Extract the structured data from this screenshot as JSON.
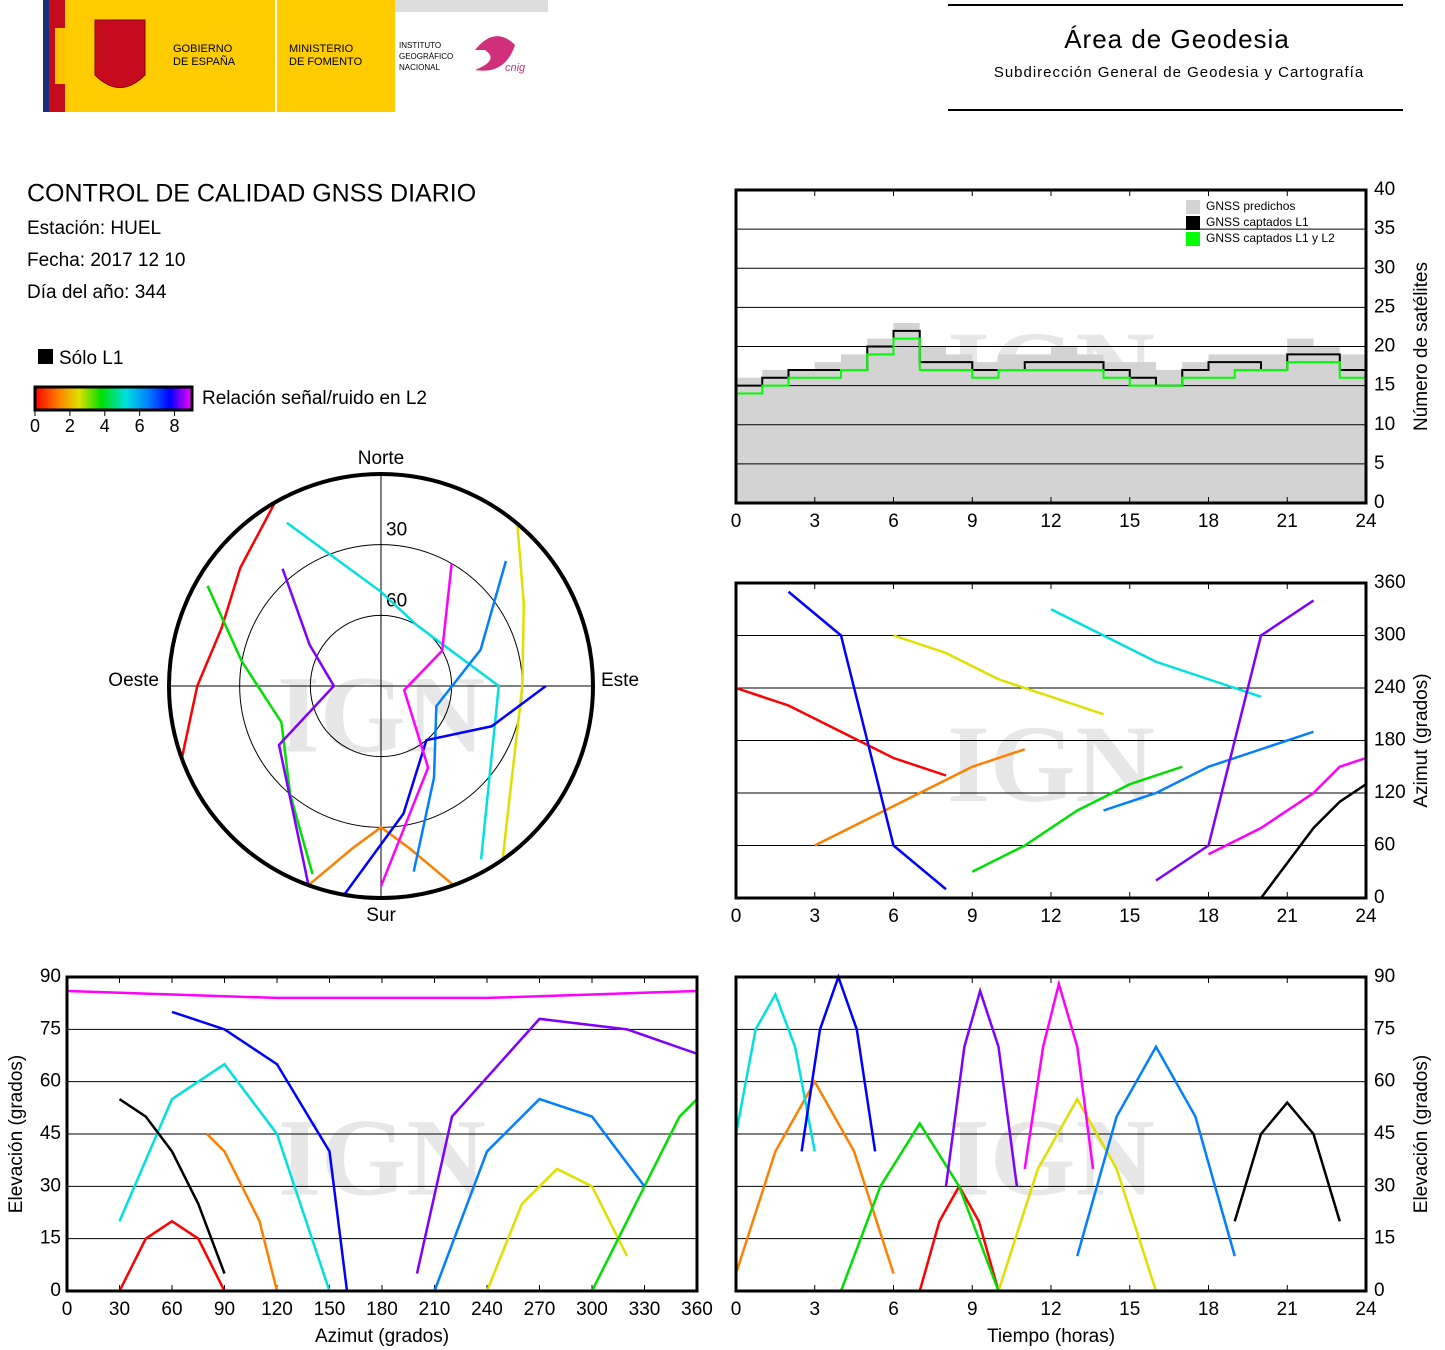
{
  "header": {
    "gov": [
      "GOBIERNO",
      "DE ESPAÑA"
    ],
    "ministry": [
      "MINISTERIO",
      "DE FOMENTO"
    ],
    "institute": [
      "INSTITUTO",
      "GEOGRÁFICO",
      "NACIONAL"
    ],
    "logo": "cnig",
    "title": "Área de Geodesia",
    "subtitle": "Subdirección General de Geodesia y Cartografía"
  },
  "report": {
    "title": "CONTROL DE CALIDAD GNSS DIARIO",
    "station": "Estación: HUEL",
    "date": "Fecha: 2017 12 10",
    "doy": "Día del año: 344"
  },
  "legend": {
    "l1_only": "Sólo L1",
    "snr": "Relación señal/ruido en L2",
    "clim": [
      0,
      9
    ],
    "ticks": [
      0,
      2,
      4,
      6,
      8
    ]
  },
  "watermark": "IGN",
  "chart_data": [
    {
      "type": "polar",
      "labels": {
        "north": "Norte",
        "south": "Sur",
        "east": "Este",
        "west": "Oeste"
      },
      "rlim": [
        90,
        0
      ],
      "rticks": [
        30,
        60
      ],
      "series": [
        {
          "color": "#ff0000",
          "x": [
            330,
            310,
            290,
            270,
            250
          ],
          "values": [
            0,
            12,
            18,
            12,
            0
          ]
        },
        {
          "color": "#ff8000",
          "x": [
            160,
            170,
            180,
            190,
            200
          ],
          "values": [
            0,
            20,
            30,
            20,
            0
          ]
        },
        {
          "color": "#e0e000",
          "x": [
            40,
            60,
            90,
            120,
            145
          ],
          "values": [
            0,
            20,
            30,
            25,
            0
          ]
        },
        {
          "color": "#00e000",
          "x": [
            300,
            280,
            250,
            220,
            200
          ],
          "values": [
            5,
            30,
            45,
            30,
            5
          ]
        },
        {
          "color": "#00e0e0",
          "x": [
            330,
            0,
            30,
            90,
            150
          ],
          "values": [
            10,
            50,
            60,
            40,
            5
          ]
        },
        {
          "color": "#0080ff",
          "x": [
            45,
            70,
            110,
            150,
            170
          ],
          "values": [
            15,
            45,
            65,
            45,
            10
          ]
        },
        {
          "color": "#0000ff",
          "x": [
            190,
            170,
            140,
            110,
            90
          ],
          "values": [
            0,
            35,
            60,
            40,
            20
          ]
        },
        {
          "color": "#8000ff",
          "x": [
            200,
            240,
            270,
            300,
            320
          ],
          "values": [
            0,
            40,
            70,
            55,
            25
          ]
        },
        {
          "color": "#ff00ff",
          "x": [
            180,
            150,
            100,
            60,
            30
          ],
          "values": [
            5,
            50,
            80,
            60,
            30
          ]
        }
      ]
    },
    {
      "type": "step",
      "ylabel": "Número de satélites",
      "xlim": [
        0,
        24
      ],
      "xticks": [
        0,
        3,
        6,
        9,
        12,
        15,
        18,
        21,
        24
      ],
      "ylim": [
        0,
        40
      ],
      "yticks": [
        0,
        5,
        10,
        15,
        20,
        25,
        30,
        35,
        40
      ],
      "legend": "upper right",
      "x": [
        0,
        1,
        2,
        3,
        4,
        5,
        6,
        7,
        8,
        9,
        10,
        11,
        12,
        13,
        14,
        15,
        16,
        17,
        18,
        19,
        20,
        21,
        22,
        23,
        24
      ],
      "series": [
        {
          "name": "GNSS predichos",
          "color": "#d3d3d3",
          "fill": true,
          "values": [
            16,
            17,
            17,
            18,
            19,
            21,
            23,
            20,
            19,
            18,
            19,
            19,
            20,
            19,
            18,
            18,
            17,
            18,
            19,
            19,
            19,
            21,
            20,
            19,
            17
          ]
        },
        {
          "name": "GNSS captados L1",
          "color": "#000000",
          "values": [
            15,
            16,
            17,
            17,
            17,
            20,
            22,
            18,
            18,
            17,
            17,
            18,
            18,
            18,
            17,
            16,
            15,
            17,
            18,
            18,
            17,
            19,
            19,
            17,
            15
          ]
        },
        {
          "name": "GNSS captados L1 y L2",
          "color": "#00ff00",
          "values": [
            14,
            15,
            16,
            16,
            17,
            19,
            21,
            17,
            17,
            16,
            17,
            17,
            17,
            17,
            16,
            15,
            15,
            16,
            16,
            17,
            17,
            18,
            18,
            16,
            14
          ]
        }
      ]
    },
    {
      "type": "line",
      "ylabel": "Azimut (grados)",
      "xlim": [
        0,
        24
      ],
      "xticks": [
        0,
        3,
        6,
        9,
        12,
        15,
        18,
        21,
        24
      ],
      "ylim": [
        0,
        360
      ],
      "yticks": [
        0,
        60,
        120,
        180,
        240,
        300,
        360
      ],
      "series": [
        {
          "color": "#ff0000",
          "x": [
            0,
            2,
            4,
            6,
            8
          ],
          "values": [
            240,
            220,
            190,
            160,
            140
          ]
        },
        {
          "color": "#ff8000",
          "x": [
            3,
            5,
            7,
            9,
            11
          ],
          "values": [
            60,
            90,
            120,
            150,
            170
          ]
        },
        {
          "color": "#e0e000",
          "x": [
            6,
            8,
            10,
            12,
            14
          ],
          "values": [
            300,
            280,
            250,
            230,
            210
          ]
        },
        {
          "color": "#00e000",
          "x": [
            9,
            11,
            13,
            15,
            17
          ],
          "values": [
            30,
            60,
            100,
            130,
            150
          ]
        },
        {
          "color": "#00e0e0",
          "x": [
            12,
            14,
            16,
            18,
            20
          ],
          "values": [
            330,
            300,
            270,
            250,
            230
          ]
        },
        {
          "color": "#0080ff",
          "x": [
            14,
            16,
            18,
            20,
            22
          ],
          "values": [
            100,
            120,
            150,
            170,
            190
          ]
        },
        {
          "color": "#0000ff",
          "x": [
            2,
            4,
            5,
            6,
            8
          ],
          "values": [
            350,
            300,
            180,
            60,
            10
          ]
        },
        {
          "color": "#8000ff",
          "x": [
            16,
            18,
            19,
            20,
            22
          ],
          "values": [
            20,
            60,
            180,
            300,
            340
          ]
        },
        {
          "color": "#ff00ff",
          "x": [
            18,
            20,
            22,
            23,
            24
          ],
          "values": [
            50,
            80,
            120,
            150,
            160
          ]
        },
        {
          "color": "#000000",
          "x": [
            20,
            21,
            22,
            23,
            24
          ],
          "values": [
            0,
            40,
            80,
            110,
            130
          ]
        }
      ]
    },
    {
      "type": "line",
      "xlabel": "Azimut (grados)",
      "ylabel": "Elevación (grados)",
      "yaxis": "left",
      "xlim": [
        0,
        360
      ],
      "xticks": [
        0,
        30,
        60,
        90,
        120,
        150,
        180,
        210,
        240,
        270,
        300,
        330,
        360
      ],
      "ylim": [
        0,
        90
      ],
      "yticks": [
        0,
        15,
        30,
        45,
        60,
        75,
        90
      ],
      "series": [
        {
          "color": "#ff0000",
          "x": [
            30,
            45,
            60,
            75,
            90
          ],
          "values": [
            0,
            15,
            20,
            15,
            0
          ]
        },
        {
          "color": "#ff8000",
          "x": [
            120,
            110,
            100,
            90,
            80
          ],
          "values": [
            0,
            20,
            30,
            40,
            45
          ]
        },
        {
          "color": "#e0e000",
          "x": [
            240,
            260,
            280,
            300,
            320
          ],
          "values": [
            0,
            25,
            35,
            30,
            10
          ]
        },
        {
          "color": "#00e000",
          "x": [
            300,
            320,
            340,
            350,
            360
          ],
          "values": [
            0,
            20,
            40,
            50,
            55
          ]
        },
        {
          "color": "#00e0e0",
          "x": [
            30,
            60,
            90,
            120,
            150
          ],
          "values": [
            20,
            55,
            65,
            45,
            0
          ]
        },
        {
          "color": "#0080ff",
          "x": [
            210,
            240,
            270,
            300,
            330
          ],
          "values": [
            0,
            40,
            55,
            50,
            30
          ]
        },
        {
          "color": "#0000ff",
          "x": [
            160,
            150,
            120,
            90,
            60
          ],
          "values": [
            0,
            40,
            65,
            75,
            80
          ]
        },
        {
          "color": "#8000ff",
          "x": [
            200,
            220,
            270,
            320,
            360
          ],
          "values": [
            5,
            50,
            78,
            75,
            68
          ]
        },
        {
          "color": "#ff00ff",
          "x": [
            0,
            60,
            120,
            180,
            240,
            300,
            360
          ],
          "values": [
            86,
            85,
            84,
            84,
            84,
            85,
            86
          ]
        },
        {
          "color": "#000000",
          "x": [
            30,
            45,
            60,
            75,
            90
          ],
          "values": [
            55,
            50,
            40,
            25,
            5
          ]
        }
      ]
    },
    {
      "type": "line",
      "xlabel": "Tiempo (horas)",
      "ylabel": "Elevación (grados)",
      "xlim": [
        0,
        24
      ],
      "xticks": [
        0,
        3,
        6,
        9,
        12,
        15,
        18,
        21,
        24
      ],
      "ylim": [
        0,
        90
      ],
      "yticks": [
        0,
        15,
        30,
        45,
        60,
        75,
        90
      ],
      "series": [
        {
          "color": "#ff0000",
          "x": [
            7,
            7.75,
            8.5,
            9.25,
            10
          ],
          "values": [
            0,
            20,
            30,
            20,
            0
          ]
        },
        {
          "color": "#ff8000",
          "x": [
            0,
            1.5,
            3,
            4.5,
            6
          ],
          "values": [
            5,
            40,
            60,
            40,
            5
          ]
        },
        {
          "color": "#e0e000",
          "x": [
            10,
            11.5,
            13,
            14.5,
            16
          ],
          "values": [
            0,
            35,
            55,
            35,
            0
          ]
        },
        {
          "color": "#00e000",
          "x": [
            4,
            5.5,
            7,
            8.5,
            10
          ],
          "values": [
            0,
            30,
            48,
            30,
            0
          ]
        },
        {
          "color": "#00e0e0",
          "x": [
            0,
            0.75,
            1.5,
            2.25,
            3
          ],
          "values": [
            45,
            75,
            85,
            70,
            40
          ]
        },
        {
          "color": "#0080ff",
          "x": [
            13,
            14.5,
            16,
            17.5,
            19
          ],
          "values": [
            10,
            50,
            70,
            50,
            10
          ]
        },
        {
          "color": "#0000ff",
          "x": [
            2.5,
            3.2,
            3.9,
            4.6,
            5.3
          ],
          "values": [
            40,
            75,
            90,
            75,
            40
          ]
        },
        {
          "color": "#8000ff",
          "x": [
            8,
            8.7,
            9.3,
            10,
            10.7
          ],
          "values": [
            30,
            70,
            86,
            70,
            30
          ]
        },
        {
          "color": "#ff00ff",
          "x": [
            11,
            11.7,
            12.3,
            13,
            13.6
          ],
          "values": [
            35,
            70,
            88,
            70,
            35
          ]
        },
        {
          "color": "#000000",
          "x": [
            19,
            20,
            21,
            22,
            23
          ],
          "values": [
            20,
            45,
            54,
            45,
            20
          ]
        }
      ]
    }
  ]
}
